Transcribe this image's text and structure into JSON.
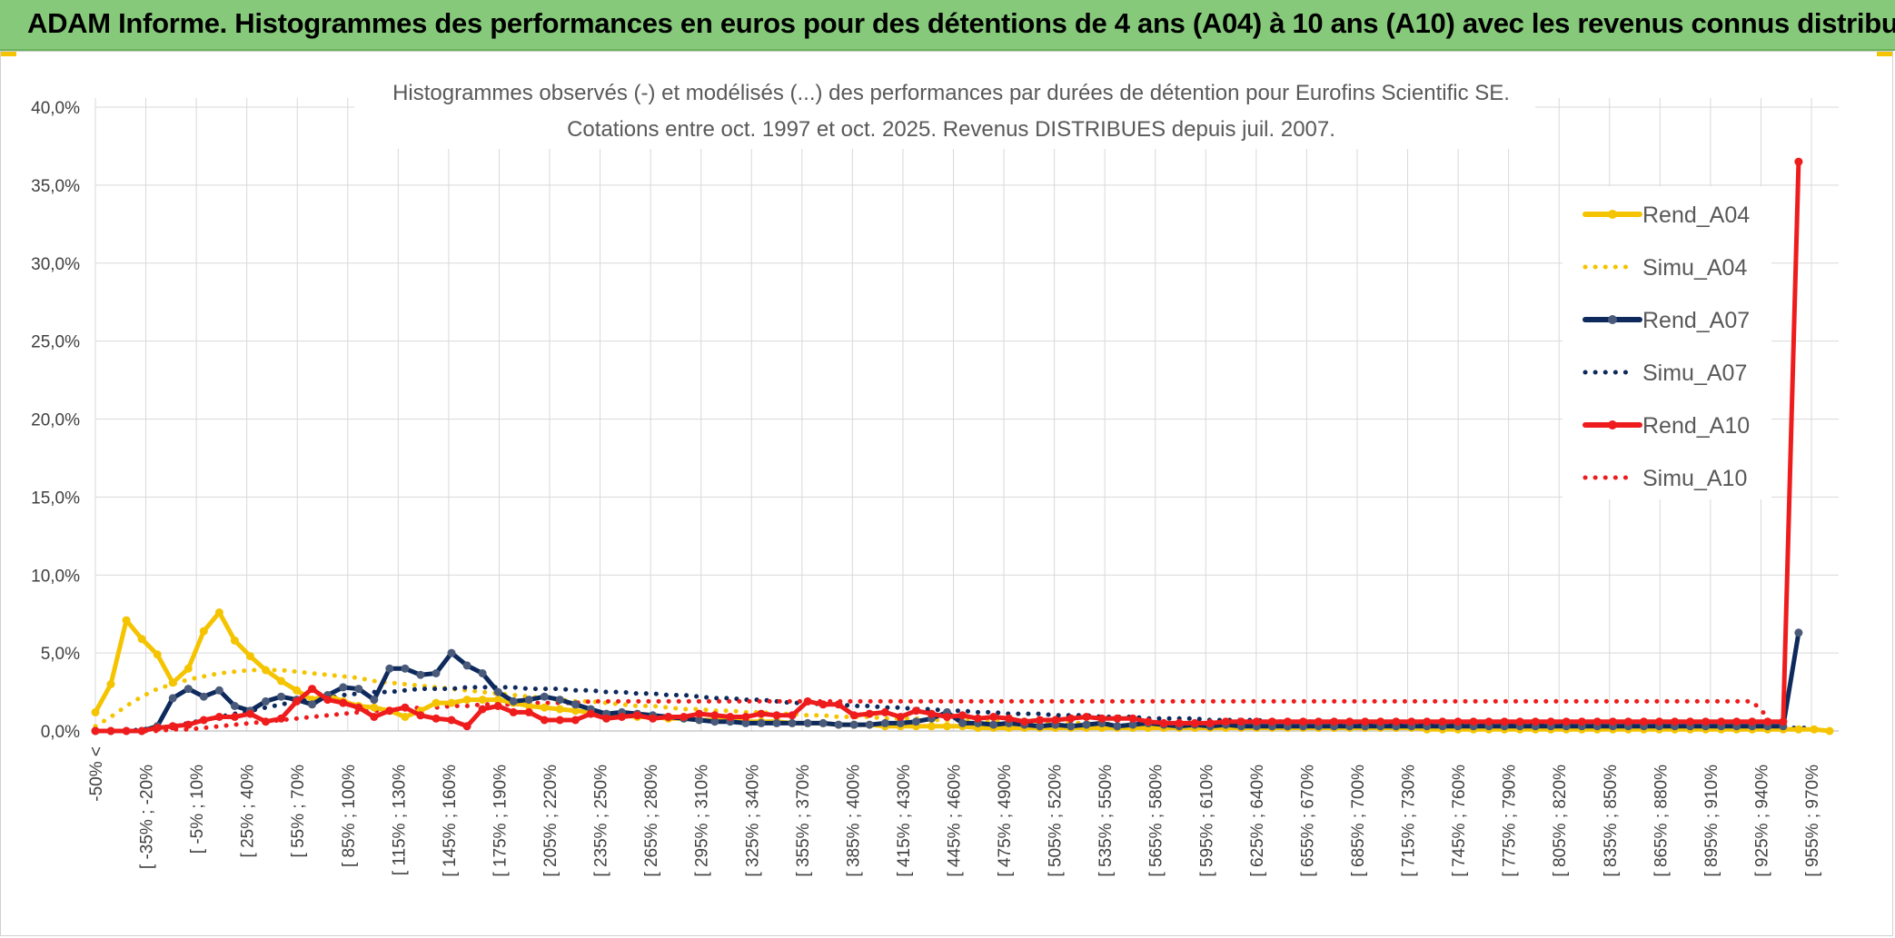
{
  "header": {
    "title": "ADAM Informe. Histogrammes des performances en euros pour des détentions de 4 ans (A04) à 10 ans (A10) avec les revenus connus distribués"
  },
  "colors": {
    "header_bg": "#86c97a",
    "a04": "#f5c400",
    "a07": "#0e2a5c",
    "a10": "#ee1c1c",
    "grid": "#d9d9d9",
    "axis_text": "#404040",
    "title_text": "#595959"
  },
  "chart_data": {
    "type": "line",
    "title": "Histogrammes observés (-) et modélisés (...) des performances par durées de détention pour Eurofins Scientific SE.",
    "subtitle": "Cotations entre oct. 1997 et oct. 2025. Revenus DISTRIBUES depuis juil. 2007.",
    "ylim": [
      0,
      40
    ],
    "yticks": [
      "0,0%",
      "5,0%",
      "10,0%",
      "15,0%",
      "20,0%",
      "25,0%",
      "30,0%",
      "35,0%",
      "40,0%"
    ],
    "xtick_labels": [
      "-50% <",
      "[ -35% ; -20%",
      "[ -5% ; 10%",
      "[ 25% ; 40%",
      "[ 55% ; 70%",
      "[ 85% ; 100%",
      "[ 115% ; 130%",
      "[ 145% ; 160%",
      "[ 175% ; 190%",
      "[ 205% ; 220%",
      "[ 235% ; 250%",
      "[ 265% ; 280%",
      "[ 295% ; 310%",
      "[ 325% ; 340%",
      "[ 355% ; 370%",
      "[ 385% ; 400%",
      "[ 415% ; 430%",
      "[ 445% ; 460%",
      "[ 475% ; 490%",
      "[ 505% ; 520%",
      "[ 535% ; 550%",
      "[ 565% ; 580%",
      "[ 595% ; 610%",
      "[ 625% ; 640%",
      "[ 655% ; 670%",
      "[ 685% ; 700%",
      "[ 715% ; 730%",
      "[ 745% ; 760%",
      "[ 775% ; 790%",
      "[ 805% ; 820%",
      "[ 835% ; 850%",
      "[ 865% ; 880%",
      "[ 895% ; 910%",
      "[ 925% ; 940%",
      "[ 955% ; 970%"
    ],
    "series": [
      {
        "name": "Rend_A04",
        "style": "solid",
        "color": "#f5c400",
        "values": [
          1.2,
          3.0,
          7.1,
          5.9,
          4.9,
          3.1,
          4.0,
          6.4,
          7.6,
          5.8,
          4.8,
          3.9,
          3.2,
          2.6,
          2.0,
          2.3,
          1.9,
          1.6,
          1.5,
          1.3,
          0.9,
          1.3,
          1.8,
          1.8,
          2.0,
          2.0,
          2.0,
          1.8,
          1.6,
          1.5,
          1.4,
          1.3,
          1.2,
          1.1,
          1.0,
          0.9,
          0.9,
          0.8,
          0.8,
          0.7,
          0.7,
          0.7,
          0.6,
          0.6,
          0.6,
          0.5,
          0.5,
          0.5,
          0.4,
          0.4,
          0.4,
          0.3,
          0.3,
          0.3,
          0.3,
          0.3,
          0.3,
          0.2,
          0.2,
          0.2,
          0.2,
          0.2,
          0.2,
          0.2,
          0.2,
          0.2,
          0.2,
          0.2,
          0.2,
          0.2,
          0.2,
          0.2,
          0.2,
          0.2,
          0.2,
          0.2,
          0.2,
          0.2,
          0.2,
          0.2,
          0.2,
          0.2,
          0.2,
          0.2,
          0.2,
          0.2,
          0.1,
          0.1,
          0.1,
          0.1,
          0.1,
          0.1,
          0.1,
          0.1,
          0.1,
          0.1,
          0.1,
          0.1,
          0.1,
          0.1,
          0.1,
          0.1,
          0.1,
          0.1,
          0.1,
          0.1,
          0.1,
          0.1,
          0.1,
          0.1,
          0.1,
          0.1,
          0.0
        ]
      },
      {
        "name": "Simu_A04",
        "style": "dotted",
        "color": "#f5c400",
        "values": [
          0.3,
          0.9,
          1.6,
          2.2,
          2.7,
          3.0,
          3.3,
          3.5,
          3.7,
          3.8,
          3.9,
          3.9,
          3.9,
          3.8,
          3.7,
          3.6,
          3.5,
          3.4,
          3.2,
          3.1,
          3.0,
          2.9,
          2.8,
          2.7,
          2.6,
          2.5,
          2.4,
          2.3,
          2.2,
          2.1,
          2.0,
          1.9,
          1.9,
          1.8,
          1.7,
          1.6,
          1.6,
          1.5,
          1.4,
          1.4,
          1.3,
          1.3,
          1.2,
          1.2,
          1.1,
          1.1,
          1.0,
          1.0,
          0.9,
          0.9,
          0.9,
          0.8,
          0.8,
          0.8,
          0.7,
          0.7,
          0.7,
          0.6,
          0.6,
          0.6,
          0.6,
          0.5,
          0.5,
          0.5,
          0.5,
          0.5,
          0.4,
          0.4,
          0.4,
          0.4,
          0.4,
          0.4,
          0.3,
          0.3,
          0.3,
          0.3,
          0.3,
          0.3,
          0.3,
          0.3,
          0.3,
          0.2,
          0.2,
          0.2,
          0.2,
          0.2,
          0.2,
          0.2,
          0.2,
          0.2,
          0.2,
          0.2,
          0.2,
          0.2,
          0.2,
          0.1,
          0.1,
          0.1,
          0.1,
          0.1,
          0.1,
          0.1,
          0.1,
          0.1,
          0.1,
          0.1,
          0.1,
          0.1,
          0.1,
          0.1,
          0.1,
          0.1
        ]
      },
      {
        "name": "Rend_A07",
        "style": "solid",
        "color": "#0e2a5c",
        "values": [
          0.0,
          0.0,
          0.0,
          0.0,
          0.3,
          2.1,
          2.7,
          2.2,
          2.6,
          1.6,
          1.3,
          1.9,
          2.2,
          2.0,
          1.7,
          2.3,
          2.8,
          2.7,
          2.0,
          4.0,
          4.0,
          3.6,
          3.7,
          5.0,
          4.2,
          3.7,
          2.5,
          1.9,
          2.0,
          2.2,
          2.0,
          1.7,
          1.4,
          1.1,
          1.2,
          1.1,
          1.0,
          0.9,
          0.8,
          0.7,
          0.6,
          0.6,
          0.5,
          0.5,
          0.5,
          0.5,
          0.5,
          0.5,
          0.4,
          0.4,
          0.4,
          0.5,
          0.5,
          0.6,
          0.8,
          1.2,
          0.5,
          0.5,
          0.4,
          0.5,
          0.4,
          0.3,
          0.4,
          0.3,
          0.4,
          0.5,
          0.3,
          0.4,
          0.5,
          0.4,
          0.3,
          0.4,
          0.3,
          0.4,
          0.3,
          0.3,
          0.3,
          0.3,
          0.3,
          0.3,
          0.3,
          0.3,
          0.3,
          0.3,
          0.3,
          0.3,
          0.3,
          0.3,
          0.3,
          0.3,
          0.3,
          0.3,
          0.3,
          0.3,
          0.3,
          0.3,
          0.3,
          0.3,
          0.3,
          0.3,
          0.3,
          0.3,
          0.3,
          0.3,
          0.3,
          0.3,
          0.3,
          0.3,
          0.3,
          0.3,
          6.3
        ]
      },
      {
        "name": "Simu_A07",
        "style": "dotted",
        "color": "#0e2a5c",
        "values": [
          0.0,
          0.0,
          0.0,
          0.1,
          0.2,
          0.3,
          0.5,
          0.7,
          0.9,
          1.1,
          1.3,
          1.5,
          1.7,
          1.9,
          2.0,
          2.1,
          2.3,
          2.4,
          2.5,
          2.5,
          2.6,
          2.7,
          2.7,
          2.7,
          2.8,
          2.8,
          2.8,
          2.8,
          2.7,
          2.7,
          2.7,
          2.6,
          2.6,
          2.5,
          2.5,
          2.4,
          2.4,
          2.3,
          2.3,
          2.2,
          2.1,
          2.1,
          2.0,
          2.0,
          1.9,
          1.8,
          1.8,
          1.7,
          1.7,
          1.6,
          1.6,
          1.5,
          1.5,
          1.4,
          1.4,
          1.3,
          1.3,
          1.2,
          1.2,
          1.1,
          1.1,
          1.1,
          1.0,
          1.0,
          1.0,
          0.9,
          0.9,
          0.9,
          0.8,
          0.8,
          0.8,
          0.8,
          0.7,
          0.7,
          0.7,
          0.7,
          0.6,
          0.6,
          0.6,
          0.6,
          0.6,
          0.5,
          0.5,
          0.5,
          0.5,
          0.5,
          0.5,
          0.4,
          0.4,
          0.4,
          0.4,
          0.4,
          0.4,
          0.4,
          0.4,
          0.3,
          0.3,
          0.3,
          0.3,
          0.3,
          0.3,
          0.3,
          0.3,
          0.3,
          0.3,
          0.3,
          0.3,
          0.2,
          0.2,
          0.2,
          0.2,
          0.2
        ]
      },
      {
        "name": "Rend_A10",
        "style": "solid",
        "color": "#ee1c1c",
        "values": [
          0.0,
          0.0,
          0.0,
          0.0,
          0.2,
          0.3,
          0.4,
          0.7,
          0.9,
          0.9,
          1.1,
          0.6,
          0.8,
          1.9,
          2.7,
          2.0,
          1.8,
          1.5,
          0.9,
          1.3,
          1.5,
          1.0,
          0.8,
          0.7,
          0.3,
          1.4,
          1.6,
          1.2,
          1.2,
          0.7,
          0.7,
          0.7,
          1.1,
          0.8,
          0.9,
          1.0,
          0.8,
          0.9,
          0.9,
          1.1,
          1.0,
          0.9,
          0.9,
          1.1,
          1.0,
          1.0,
          1.9,
          1.7,
          1.7,
          1.0,
          1.1,
          1.2,
          0.9,
          1.3,
          1.1,
          0.9,
          1.0,
          0.8,
          0.9,
          0.8,
          0.6,
          0.7,
          0.7,
          0.8,
          0.9,
          0.8,
          0.8,
          0.8,
          0.6,
          0.5,
          0.5,
          0.5,
          0.5,
          0.6,
          0.6,
          0.6,
          0.6,
          0.6,
          0.6,
          0.6,
          0.6,
          0.6,
          0.6,
          0.6,
          0.6,
          0.6,
          0.6,
          0.6,
          0.6,
          0.6,
          0.6,
          0.6,
          0.6,
          0.6,
          0.6,
          0.6,
          0.6,
          0.6,
          0.6,
          0.6,
          0.6,
          0.6,
          0.6,
          0.6,
          0.6,
          0.6,
          0.6,
          0.6,
          0.6,
          0.6,
          36.5
        ]
      },
      {
        "name": "Simu_A10",
        "style": "dotted",
        "color": "#ee1c1c",
        "values": [
          0.0,
          0.0,
          0.0,
          0.0,
          0.0,
          0.1,
          0.1,
          0.2,
          0.3,
          0.4,
          0.5,
          0.6,
          0.7,
          0.8,
          0.9,
          1.0,
          1.1,
          1.2,
          1.3,
          1.3,
          1.4,
          1.5,
          1.5,
          1.6,
          1.6,
          1.7,
          1.7,
          1.7,
          1.8,
          1.8,
          1.8,
          1.8,
          1.9,
          1.9,
          1.9,
          1.9,
          1.9,
          1.9,
          1.9,
          1.9,
          1.9,
          1.9,
          1.9,
          1.9,
          1.9,
          1.9,
          1.9,
          1.9,
          1.9,
          1.9,
          1.9,
          1.9,
          1.9,
          1.9,
          1.9,
          1.9,
          1.9,
          1.9,
          1.9,
          1.9,
          1.9,
          1.9,
          1.9,
          1.9,
          1.9,
          1.9,
          1.9,
          1.9,
          1.9,
          1.9,
          1.9,
          1.9,
          1.9,
          1.9,
          1.9,
          1.9,
          1.9,
          1.9,
          1.9,
          1.9,
          1.9,
          1.9,
          1.9,
          1.9,
          1.9,
          1.9,
          1.9,
          1.9,
          1.9,
          1.9,
          1.9,
          1.9,
          1.9,
          1.9,
          1.9,
          1.9,
          1.9,
          1.9,
          1.9,
          1.9,
          1.9,
          1.9,
          1.9,
          1.9,
          1.9,
          1.9,
          1.9,
          1.9,
          0.9
        ]
      }
    ],
    "legend": {
      "position": "right",
      "entries": [
        "Rend_A04",
        "Simu_A04",
        "Rend_A07",
        "Simu_A07",
        "Rend_A10",
        "Simu_A10"
      ]
    }
  }
}
